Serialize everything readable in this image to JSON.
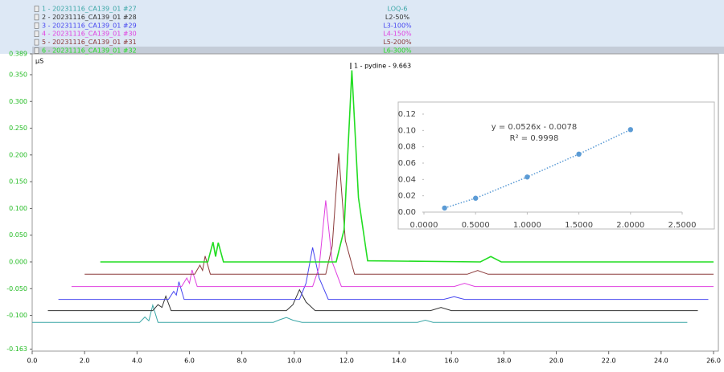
{
  "chart_data": [
    {
      "type": "line",
      "y_label": "μS",
      "annotation": "1 - pydine - 9.663",
      "xlim": [
        0,
        26
      ],
      "ylim": [
        -0.163,
        0.389
      ],
      "xticks": [
        {
          "value": 0,
          "label": "0.0"
        },
        {
          "value": 2,
          "label": "2.0"
        },
        {
          "value": 4,
          "label": "4.0"
        },
        {
          "value": 6,
          "label": "6.0"
        },
        {
          "value": 8,
          "label": "8.0"
        },
        {
          "value": 10,
          "label": "10.0"
        },
        {
          "value": 12,
          "label": "12.0"
        },
        {
          "value": 14,
          "label": "14.0"
        },
        {
          "value": 16,
          "label": "16.0"
        },
        {
          "value": 18,
          "label": "18.0"
        },
        {
          "value": 20,
          "label": "20.0"
        },
        {
          "value": 22,
          "label": "22.0"
        },
        {
          "value": 24,
          "label": "24.0"
        },
        {
          "value": 26,
          "label": "26.0"
        }
      ],
      "yticks": [
        -0.163,
        {
          "value": -0.1,
          "label": "-0.100"
        },
        {
          "value": -0.05,
          "label": "-0.050"
        },
        {
          "value": 0,
          "label": "0.000"
        },
        {
          "value": 0.05,
          "label": "0.050"
        },
        {
          "value": 0.1,
          "label": "0.100"
        },
        {
          "value": 0.15,
          "label": "0.150"
        },
        {
          "value": 0.2,
          "label": "0.200"
        },
        {
          "value": 0.25,
          "label": "0.250"
        },
        {
          "value": 0.3,
          "label": "0.300"
        },
        {
          "value": 0.35,
          "label": "0.350"
        },
        0.389
      ],
      "series": [
        {
          "name": "1 - 20231116_CA139_01 #27",
          "label": "LOQ-6",
          "color": "#3aa6a6",
          "x": [
            0.0,
            4.1,
            4.3,
            4.45,
            4.6,
            4.8,
            9.2,
            9.45,
            9.7,
            9.95,
            10.3,
            14.7,
            15.0,
            15.3,
            25.0
          ],
          "values": [
            -0.113,
            -0.113,
            -0.103,
            -0.11,
            -0.081,
            -0.113,
            -0.113,
            -0.108,
            -0.104,
            -0.109,
            -0.113,
            -0.113,
            -0.109,
            -0.113,
            -0.113
          ]
        },
        {
          "name": "2 - 20231116_CA139_01 #28",
          "label": "L2-50%",
          "color": "#333333",
          "x": [
            0.6,
            4.6,
            4.8,
            4.95,
            5.1,
            5.3,
            9.7,
            9.95,
            10.2,
            10.45,
            10.8,
            15.2,
            15.6,
            16.0,
            25.4
          ],
          "values": [
            -0.091,
            -0.091,
            -0.08,
            -0.085,
            -0.064,
            -0.091,
            -0.091,
            -0.08,
            -0.052,
            -0.075,
            -0.091,
            -0.091,
            -0.085,
            -0.091,
            -0.091
          ]
        },
        {
          "name": "3 - 20231116_CA139_01 #29",
          "label": "L3-100%",
          "color": "#4646f0",
          "x": [
            1.0,
            5.2,
            5.4,
            5.5,
            5.6,
            5.8,
            10.2,
            10.45,
            10.7,
            10.95,
            11.3,
            15.7,
            16.1,
            16.5,
            25.8
          ],
          "values": [
            -0.07,
            -0.07,
            -0.055,
            -0.062,
            -0.037,
            -0.07,
            -0.07,
            -0.04,
            0.027,
            -0.03,
            -0.07,
            -0.07,
            -0.065,
            -0.07,
            -0.07
          ]
        },
        {
          "name": "4 - 20231116_CA139_01 #30",
          "label": "L4-150%",
          "color": "#e040e0",
          "x": [
            1.5,
            5.7,
            5.9,
            6.0,
            6.1,
            6.3,
            10.7,
            10.95,
            11.2,
            11.45,
            11.8,
            16.1,
            16.5,
            16.9,
            26.0
          ],
          "values": [
            -0.046,
            -0.046,
            -0.03,
            -0.04,
            -0.015,
            -0.046,
            -0.046,
            -0.01,
            0.115,
            0.0,
            -0.046,
            -0.046,
            -0.04,
            -0.046,
            -0.046
          ]
        },
        {
          "name": "5 - 20231116_CA139_01 #31",
          "label": "L5-200%",
          "color": "#8b3a3a",
          "x": [
            2.0,
            6.2,
            6.4,
            6.5,
            6.6,
            6.8,
            11.2,
            11.45,
            11.7,
            11.95,
            12.3,
            16.6,
            17.0,
            17.4,
            26.0
          ],
          "values": [
            -0.023,
            -0.023,
            -0.006,
            -0.016,
            0.011,
            -0.023,
            -0.023,
            0.03,
            0.203,
            0.04,
            -0.023,
            -0.023,
            -0.016,
            -0.023,
            -0.023
          ]
        },
        {
          "name": "6 - 20231116_CA139_01 #32",
          "label": "L6-300%",
          "color": "#22dd22",
          "x": [
            2.6,
            6.7,
            6.9,
            7.0,
            7.1,
            7.3,
            11.6,
            11.9,
            12.2,
            12.45,
            12.8,
            17.1,
            17.5,
            17.9,
            26.0
          ],
          "values": [
            0,
            0,
            0.037,
            0.01,
            0.036,
            0,
            0,
            0.06,
            0.358,
            0.12,
            0.002,
            0,
            0.01,
            0,
            0
          ]
        }
      ]
    },
    {
      "type": "scatter",
      "color": "#5b9bd5",
      "trendline": true,
      "equation": "y = 0.0526x - 0.0078",
      "r_squared": "R² = 0.9998",
      "x": [
        0.2,
        0.5,
        1.0,
        1.5,
        2.0
      ],
      "values": [
        0.005,
        0.017,
        0.043,
        0.071,
        0.101
      ],
      "xlim": [
        0,
        2.5
      ],
      "ylim": [
        0,
        0.12
      ],
      "xticks": [
        {
          "value": 0,
          "label": "0.0000"
        },
        {
          "value": 0.5,
          "label": "0.5000"
        },
        {
          "value": 1,
          "label": "1.0000"
        },
        {
          "value": 1.5,
          "label": "1.5000"
        },
        {
          "value": 2,
          "label": "2.0000"
        },
        {
          "value": 2.5,
          "label": "2.5000"
        }
      ],
      "yticks": [
        {
          "value": 0,
          "label": "0.00"
        },
        0.02,
        0.04,
        0.06,
        0.08,
        {
          "value": 0.1,
          "label": "0.10"
        },
        0.12
      ]
    }
  ]
}
